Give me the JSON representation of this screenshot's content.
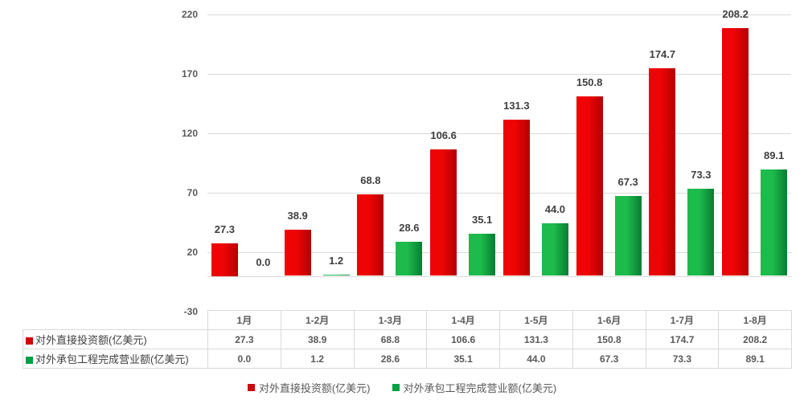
{
  "chart_data": {
    "type": "bar",
    "title": "",
    "categories": [
      "1月",
      "1-2月",
      "1-3月",
      "1-4月",
      "1-5月",
      "1-6月",
      "1-7月",
      "1-8月"
    ],
    "series": [
      {
        "name": "对外直接投资额(亿美元)",
        "values": [
          27.3,
          38.9,
          68.8,
          106.6,
          131.3,
          150.8,
          174.7,
          208.2
        ],
        "bar_color_light": "#ee0404",
        "bar_color_dark": "#b40000",
        "key_color": "#cf0404"
      },
      {
        "name": "对外承包工程完成营业额(亿美元)",
        "values": [
          0.0,
          1.2,
          28.6,
          35.1,
          44.0,
          67.3,
          73.3,
          89.1
        ],
        "bar_color_light": "#1dbb4b",
        "bar_color_dark": "#087d34",
        "key_color": "#00a044"
      }
    ],
    "value_decimals": 1,
    "data_labels_shown": true,
    "y_axis": {
      "min": -30,
      "max": 220,
      "step": 50,
      "ticks": [
        220,
        170,
        120,
        70,
        20,
        -30
      ],
      "tick_labels": [
        "220",
        "170",
        "120",
        "70",
        "20",
        "-30"
      ]
    },
    "grid": true,
    "legend_position": "bottom",
    "data_table_shown": true
  },
  "colors": {
    "background": "#ffffff",
    "gridline": "#d9d9d9",
    "axis_text": "#595959",
    "data_label_text": "#3f3f3f",
    "table_border": "#d9d9d9",
    "table_header_text": "#595959",
    "table_value_text": "#595959",
    "table_label_text": "#404040",
    "legend_text": "#595959"
  }
}
